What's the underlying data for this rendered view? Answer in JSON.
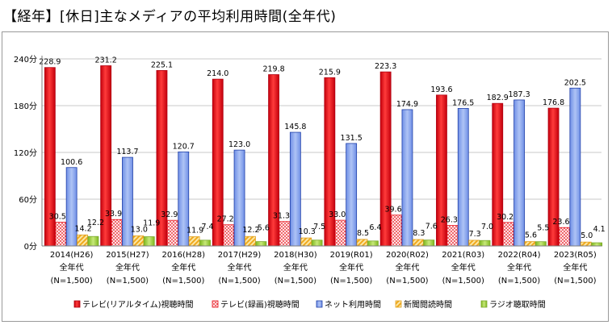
{
  "page_title": "【経年】[休日]主なメディアの平均利用時間(全年代)",
  "chart_data": {
    "type": "bar",
    "ylim": [
      0,
      240
    ],
    "y_ticks": [
      {
        "value": 0,
        "label": "0分"
      },
      {
        "value": 60,
        "label": "60分"
      },
      {
        "value": 120,
        "label": "120分"
      },
      {
        "value": 180,
        "label": "180分"
      },
      {
        "value": 240,
        "label": "240分"
      }
    ],
    "categories": [
      [
        "2014(H26)",
        "全年代",
        "(N=1,500)"
      ],
      [
        "2015(H27)",
        "全年代",
        "(N=1,500)"
      ],
      [
        "2016(H28)",
        "全年代",
        "(N=1,500)"
      ],
      [
        "2017(H29)",
        "全年代",
        "(N=1,500)"
      ],
      [
        "2018(H30)",
        "全年代",
        "(N=1,500)"
      ],
      [
        "2019(R01)",
        "全年代",
        "(N=1,500)"
      ],
      [
        "2020(R02)",
        "全年代",
        "(N=1,500)"
      ],
      [
        "2021(R03)",
        "全年代",
        "(N=1,500)"
      ],
      [
        "2022(R04)",
        "全年代",
        "(N=1,500)"
      ],
      [
        "2023(R05)",
        "全年代",
        "(N=1,500)"
      ]
    ],
    "series": [
      {
        "name": "テレビ(リアルタイム)視聴時間",
        "color": "#e8101a",
        "pattern": "solid-red",
        "values": [
          228.9,
          231.2,
          225.1,
          214.0,
          219.8,
          215.9,
          223.3,
          193.6,
          182.9,
          176.8
        ],
        "labels": [
          "228.9",
          "231.2",
          "225.1",
          "214.0",
          "219.8",
          "215.9",
          "223.3",
          "193.6",
          "182.9",
          "176.8"
        ]
      },
      {
        "name": "テレビ(録画)視聴時間",
        "color": "#e8101a",
        "pattern": "dots-red",
        "values": [
          30.5,
          33.9,
          32.9,
          27.2,
          31.3,
          33.0,
          39.6,
          26.3,
          30.2,
          23.6
        ],
        "labels": [
          "30.5",
          "33.9",
          "32.9",
          "27.2",
          "31.3",
          "33.0",
          "39.6",
          "26.3",
          "30.2",
          "23.6"
        ]
      },
      {
        "name": "ネット利用時間",
        "color": "#2b4ec2",
        "pattern": "solid-blue",
        "values": [
          100.6,
          113.7,
          120.7,
          123.0,
          145.8,
          131.5,
          174.9,
          176.5,
          187.3,
          202.5
        ],
        "labels": [
          "100.6",
          "113.7",
          "120.7",
          "123.0",
          "145.8",
          "131.5",
          "174.9",
          "176.5",
          "187.3",
          "202.5"
        ]
      },
      {
        "name": "新聞閲読時間",
        "color": "#f5b82e",
        "pattern": "stripes-yellow",
        "values": [
          14.2,
          13.0,
          11.9,
          12.2,
          10.3,
          8.5,
          8.3,
          7.3,
          5.6,
          5.0
        ],
        "labels": [
          "14.2",
          "13.0",
          "11.9",
          "12.2",
          "10.3",
          "8.5",
          "8.3",
          "7.3",
          "5.6",
          "5.0"
        ]
      },
      {
        "name": "ラジオ聴取時間",
        "color": "#9acd32",
        "pattern": "solid-green",
        "values": [
          12.2,
          11.9,
          7.4,
          5.6,
          7.5,
          6.4,
          7.6,
          7.0,
          5.5,
          4.1
        ],
        "labels": [
          "12.2",
          "11.9",
          "7.4",
          "5.6",
          "7.5",
          "6.4",
          "7.6",
          "7.0",
          "5.5",
          "4.1"
        ]
      }
    ],
    "grid": true,
    "legend_position": "bottom"
  }
}
